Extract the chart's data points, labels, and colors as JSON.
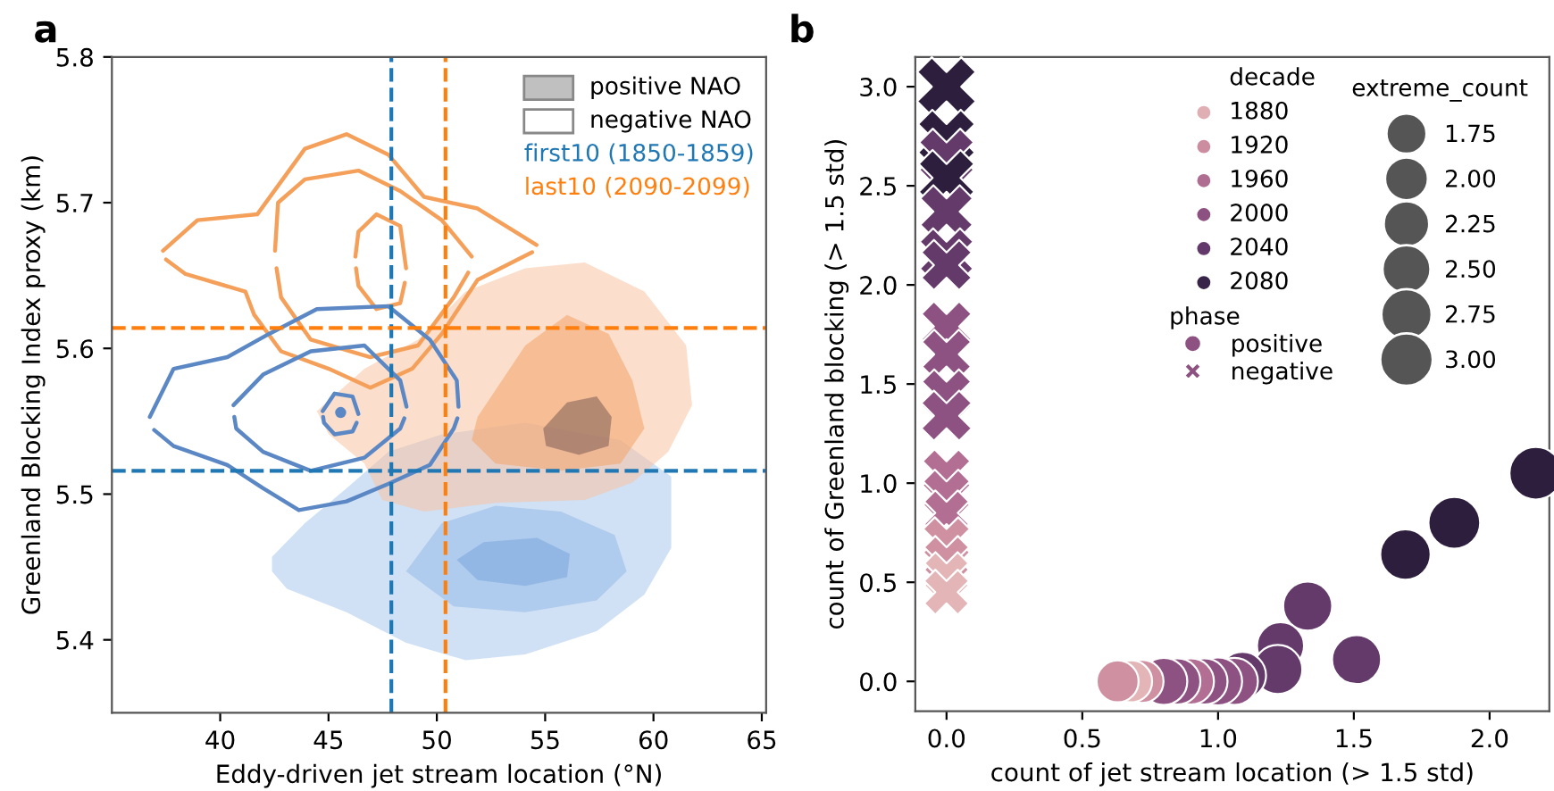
{
  "chart_data": [
    {
      "type": "line",
      "title": "a",
      "xlabel": "Eddy-driven jet stream location (°N)",
      "ylabel": "Greenland Blocking Index proxy (km)",
      "xlim": [
        35,
        65.2
      ],
      "ylim": [
        5.35,
        5.8
      ],
      "xticks": [
        40,
        45,
        50,
        55,
        60,
        65
      ],
      "yticks": [
        5.4,
        5.5,
        5.6,
        5.7,
        5.8
      ],
      "grid": false,
      "annotations": [
        "positive NAO",
        "negative NAO",
        "first10 (1850-1859)",
        "last10 (2090-2099)"
      ],
      "ref_lines": [
        {
          "axis": "x",
          "value": 47.9,
          "color": "#1f77b4",
          "line_style": "dashed"
        },
        {
          "axis": "x",
          "value": 50.4,
          "color": "#ff7f0e",
          "line_style": "dashed"
        },
        {
          "axis": "y",
          "value": 5.614,
          "color": "#ff7f0e",
          "line_style": "dashed"
        },
        {
          "axis": "y",
          "value": 5.516,
          "color": "#1f77b4",
          "line_style": "dashed"
        }
      ],
      "series": [
        {
          "type": "area",
          "color": "#a9c8ec",
          "x": [
            42.39,
            43.91,
            45.83,
            47.76,
            50.23,
            54.08,
            58.48,
            60.82,
            60.82,
            59.58,
            57.38,
            54.08,
            51.33,
            48.58,
            45.83,
            43.08,
            42.39
          ],
          "values": [
            5.457,
            5.48,
            5.504,
            5.529,
            5.541,
            5.549,
            5.537,
            5.512,
            5.463,
            5.431,
            5.406,
            5.39,
            5.386,
            5.398,
            5.419,
            5.435,
            5.447
          ]
        },
        {
          "type": "area",
          "color": "#94b9e6",
          "x": [
            48.58,
            50.23,
            52.71,
            55.73,
            58.21,
            58.76,
            57.38,
            54.08,
            50.78
          ],
          "values": [
            5.447,
            5.48,
            5.492,
            5.488,
            5.472,
            5.447,
            5.427,
            5.419,
            5.423
          ]
        },
        {
          "type": "area",
          "color": "#7aa8dd",
          "x": [
            50.92,
            52.16,
            54.63,
            56.14,
            56.01,
            54.08,
            51.88
          ],
          "values": [
            5.455,
            5.467,
            5.47,
            5.459,
            5.443,
            5.437,
            5.441
          ]
        },
        {
          "type": "area",
          "color": "#f8c3a0",
          "x": [
            44.46,
            46.66,
            49.13,
            51.33,
            54.08,
            56.83,
            59.58,
            61.51,
            61.78,
            60.68,
            59.03,
            56.83,
            52.71,
            49.41,
            47.48,
            46.66,
            45.01
          ],
          "values": [
            5.557,
            5.586,
            5.606,
            5.639,
            5.655,
            5.659,
            5.639,
            5.602,
            5.561,
            5.529,
            5.508,
            5.496,
            5.494,
            5.488,
            5.496,
            5.521,
            5.541
          ]
        },
        {
          "type": "area",
          "color": "#f4a46c",
          "x": [
            51.88,
            54.08,
            56.01,
            57.93,
            59.03,
            59.58,
            58.48,
            55.73,
            52.71,
            51.61
          ],
          "values": [
            5.553,
            5.602,
            5.623,
            5.61,
            5.578,
            5.545,
            5.521,
            5.516,
            5.521,
            5.537
          ]
        },
        {
          "type": "area",
          "color": "#7d5d55",
          "x": [
            54.91,
            56.01,
            57.38,
            58.07,
            57.93,
            56.56,
            55.04
          ],
          "values": [
            5.545,
            5.563,
            5.567,
            5.553,
            5.533,
            5.527,
            5.533
          ]
        },
        {
          "type": "line",
          "color": "#f5a05a",
          "x": [
            37.36,
            38.95,
            41.71,
            43.91,
            45.83,
            47.76,
            49.41,
            51.88,
            54.6
          ],
          "values": [
            5.667,
            5.688,
            5.692,
            5.737,
            5.747,
            5.733,
            5.704,
            5.696,
            5.671
          ]
        },
        {
          "type": "line",
          "color": "#f5a05a",
          "x": [
            37.5,
            38.4,
            41.16,
            41.57,
            42.81,
            45.01,
            46.93,
            48.86,
            50.23,
            51.88,
            54.4
          ],
          "values": [
            5.661,
            5.651,
            5.639,
            5.623,
            5.598,
            5.586,
            5.573,
            5.586,
            5.61,
            5.647,
            5.666
          ]
        },
        {
          "type": "line",
          "color": "#f5a05a",
          "x": [
            42.53,
            42.67,
            43.91,
            46.38,
            48.31,
            50.23,
            51.61
          ],
          "values": [
            5.667,
            5.7,
            5.716,
            5.722,
            5.708,
            5.688,
            5.663
          ]
        },
        {
          "type": "line",
          "color": "#f5a05a",
          "x": [
            42.6,
            42.81,
            44.18,
            46.93,
            49.13,
            50.78,
            51.45
          ],
          "values": [
            5.655,
            5.635,
            5.606,
            5.594,
            5.602,
            5.635,
            5.652
          ]
        },
        {
          "type": "line",
          "color": "#f5a05a",
          "x": [
            46.24,
            46.38,
            47.21,
            48.31,
            48.58
          ],
          "values": [
            5.663,
            5.68,
            5.692,
            5.684,
            5.655
          ]
        },
        {
          "type": "line",
          "color": "#f5a05a",
          "x": [
            46.27,
            46.38,
            47.21,
            48.31,
            48.52
          ],
          "values": [
            5.655,
            5.643,
            5.627,
            5.631,
            5.645
          ]
        },
        {
          "type": "line",
          "color": "#5b88c4",
          "x": [
            36.75,
            37.85,
            40.33,
            42.26,
            44.46,
            47.76,
            49.68,
            50.92,
            51.0
          ],
          "values": [
            5.553,
            5.586,
            5.594,
            5.61,
            5.627,
            5.629,
            5.606,
            5.578,
            5.56
          ]
        },
        {
          "type": "line",
          "color": "#5b88c4",
          "x": [
            36.95,
            37.85,
            40.33,
            41.98,
            43.63,
            45.83,
            47.76,
            49.68,
            50.78,
            50.95
          ],
          "values": [
            5.544,
            5.533,
            5.52,
            5.504,
            5.489,
            5.495,
            5.507,
            5.52,
            5.545,
            5.552
          ]
        },
        {
          "type": "line",
          "color": "#5b88c4",
          "x": [
            40.61,
            41.98,
            44.18,
            46.66,
            48.31,
            48.6
          ],
          "values": [
            5.561,
            5.582,
            5.598,
            5.602,
            5.578,
            5.56
          ]
        },
        {
          "type": "line",
          "color": "#5b88c4",
          "x": [
            40.65,
            40.74,
            41.98,
            44.18,
            46.66,
            48.31,
            48.5
          ],
          "values": [
            5.553,
            5.545,
            5.529,
            5.516,
            5.525,
            5.545,
            5.552
          ]
        },
        {
          "type": "line",
          "color": "#5b88c4",
          "x": [
            44.73,
            45.28,
            46.11,
            46.38
          ],
          "values": [
            5.557,
            5.569,
            5.567,
            5.555
          ]
        },
        {
          "type": "line",
          "color": "#5b88c4",
          "x": [
            44.75,
            44.79,
            45.28,
            46.11,
            46.3
          ],
          "values": [
            5.553,
            5.549,
            5.541,
            5.543,
            5.549
          ]
        },
        {
          "type": "scatter",
          "color": "#5b88c4",
          "x": [
            45.56
          ],
          "values": [
            5.556
          ]
        }
      ]
    },
    {
      "type": "bubble",
      "title": "b",
      "xlabel": "count of jet stream location (> 1.5 std)",
      "ylabel": "count of Greenland blocking (> 1.5 std)",
      "xlim": [
        -0.115,
        2.22
      ],
      "ylim": [
        -0.15,
        3.15
      ],
      "xticks": [
        {
          "value": 0,
          "label": "0.0"
        },
        0.5,
        {
          "value": 1,
          "label": "1.0"
        },
        1.5,
        {
          "value": 2,
          "label": "2.0"
        }
      ],
      "yticks": [
        {
          "value": 0,
          "label": "0.0"
        },
        0.5,
        {
          "value": 1,
          "label": "1.0"
        },
        1.5,
        {
          "value": 2,
          "label": "2.0"
        },
        2.5,
        {
          "value": 3,
          "label": "3.0"
        }
      ],
      "grid": false,
      "legend": "top",
      "legend_title": "phase",
      "annotations": [
        "extreme_count",
        "decade",
        "1880",
        "1920",
        "1960",
        "2000",
        "2040",
        "2080"
      ],
      "size_legend": [
        1.75,
        {
          "value": 2,
          "label": "2.00"
        },
        2.25,
        {
          "value": 2.5,
          "label": "2.50"
        },
        2.75,
        {
          "value": 3,
          "label": "3.00"
        }
      ],
      "series": [
        {
          "name": "positive",
          "marker": "circle",
          "x": [
            2.17,
            1.87,
            1.69,
            1.33,
            1.51,
            1.23,
            1.22,
            1.09,
            1.06,
            1.0,
            0.95,
            0.9,
            0.85,
            0.8,
            0.72,
            0.68,
            0.63
          ],
          "values": [
            1.05,
            0.8,
            0.64,
            0.38,
            0.11,
            0.18,
            0.06,
            0.03,
            0.0,
            0.0,
            0.0,
            0.0,
            0.0,
            0.0,
            0.0,
            0.0,
            0.0
          ],
          "sizes": [
            3.0,
            2.9,
            2.75,
            2.6,
            2.6,
            2.4,
            2.6,
            2.4,
            2.4,
            2.5,
            2.3,
            2.3,
            2.3,
            2.4,
            2.0,
            1.9,
            1.9
          ],
          "colors": [
            "#2d1e3e",
            "#2d1e3e",
            "#2d1e3e",
            "#643a6b",
            "#643a6b",
            "#643a6b",
            "#643a6b",
            "#643a6b",
            "#8d5282",
            "#8d5282",
            "#8d5282",
            "#b26f93",
            "#8d5282",
            "#8d5282",
            "#cf90a2",
            "#e3b5b7",
            "#cf90a2"
          ]
        },
        {
          "name": "negative",
          "marker": "cross",
          "x": [
            0.0,
            0.0,
            0.0,
            0.0,
            0.0,
            0.0,
            0.0,
            0.0,
            0.0,
            0.0,
            0.0,
            0.0,
            0.0,
            0.0,
            0.0,
            0.0,
            0.0,
            0.0
          ],
          "values": [
            3.0,
            2.74,
            2.65,
            2.54,
            2.37,
            2.15,
            2.1,
            1.79,
            1.65,
            1.45,
            1.34,
            1.05,
            0.95,
            0.85,
            0.71,
            0.62,
            0.54,
            0.45
          ],
          "sizes": [
            3.0,
            2.8,
            2.6,
            2.7,
            2.4,
            2.5,
            2.2,
            2.2,
            2.1,
            2.1,
            2.2,
            2.0,
            1.9,
            1.75,
            1.9,
            1.75,
            1.7,
            1.75
          ],
          "colors": [
            "#2d1e3e",
            "#2d1e3e",
            "#643a6b",
            "#2d1e3e",
            "#643a6b",
            "#643a6b",
            "#643a6b",
            "#8d5282",
            "#8d5282",
            "#8d5282",
            "#8d5282",
            "#b26f93",
            "#b26f93",
            "#b26f93",
            "#cf90a2",
            "#cf90a2",
            "#e3b5b7",
            "#e3b5b7"
          ]
        }
      ]
    }
  ]
}
